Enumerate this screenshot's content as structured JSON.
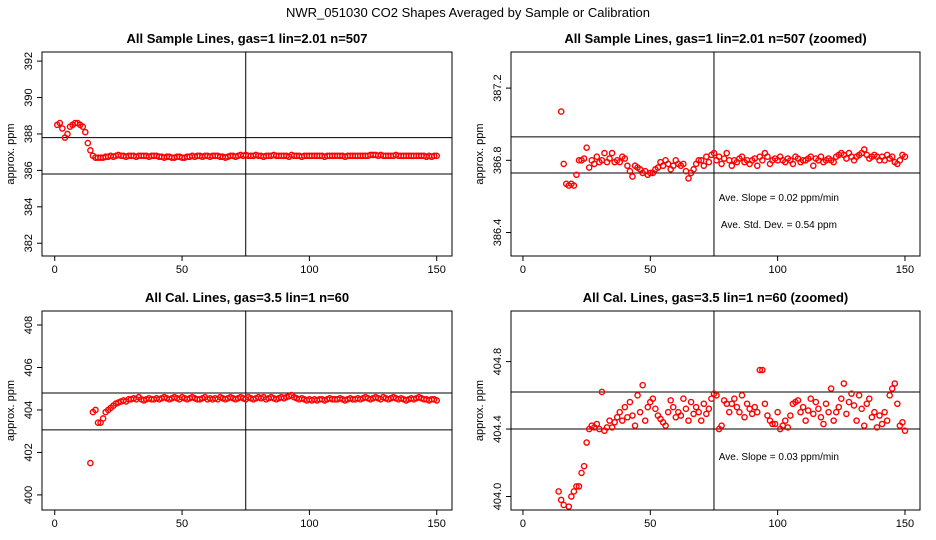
{
  "title": "NWR_051030  CO2 Shapes Averaged by Sample or Calibration",
  "chart_data": [
    {
      "type": "scatter",
      "title": "All Sample Lines, gas=1 lin=2.01 n=507",
      "ylabel": "approx. ppm",
      "color": "#ff0000",
      "xlim": [
        -5,
        156
      ],
      "ylim": [
        381.3,
        392.5
      ],
      "xticks": [
        0,
        50,
        100,
        150
      ],
      "yticks": [
        382,
        384,
        386,
        388,
        390,
        392
      ],
      "hlines": [
        387.8,
        385.8
      ],
      "vlines": [
        75
      ],
      "annotations": [],
      "x": [
        1,
        2,
        3,
        4,
        5,
        6,
        7,
        8,
        9,
        10,
        11,
        12,
        13,
        14,
        15,
        16,
        17,
        18,
        19,
        20,
        21,
        22,
        23,
        24,
        25,
        26,
        27,
        28,
        29,
        30,
        31,
        32,
        33,
        34,
        35,
        36,
        37,
        38,
        39,
        40,
        41,
        42,
        43,
        44,
        45,
        46,
        47,
        48,
        49,
        50,
        51,
        52,
        53,
        54,
        55,
        56,
        57,
        58,
        59,
        60,
        61,
        62,
        63,
        64,
        65,
        66,
        67,
        68,
        69,
        70,
        71,
        72,
        73,
        74,
        75,
        76,
        77,
        78,
        79,
        80,
        81,
        82,
        83,
        84,
        85,
        86,
        87,
        88,
        89,
        90,
        91,
        92,
        93,
        94,
        95,
        96,
        97,
        98,
        99,
        100,
        101,
        102,
        103,
        104,
        105,
        106,
        107,
        108,
        109,
        110,
        111,
        112,
        113,
        114,
        115,
        116,
        117,
        118,
        119,
        120,
        121,
        122,
        123,
        124,
        125,
        126,
        127,
        128,
        129,
        130,
        131,
        132,
        133,
        134,
        135,
        136,
        137,
        138,
        139,
        140,
        141,
        142,
        143,
        144,
        145,
        146,
        147,
        148,
        149,
        150
      ],
      "values": [
        388.5,
        388.6,
        388.3,
        387.8,
        388.0,
        388.4,
        388.5,
        388.6,
        388.6,
        388.5,
        388.4,
        388.1,
        387.5,
        387.1,
        386.8,
        386.7,
        386.7,
        386.7,
        386.7,
        386.75,
        386.75,
        386.8,
        386.75,
        386.8,
        386.85,
        386.8,
        386.8,
        386.75,
        386.8,
        386.8,
        386.8,
        386.75,
        386.8,
        386.8,
        386.8,
        386.8,
        386.75,
        386.8,
        386.8,
        386.8,
        386.75,
        386.75,
        386.7,
        386.75,
        386.75,
        386.7,
        386.7,
        386.75,
        386.75,
        386.7,
        386.7,
        386.75,
        386.75,
        386.8,
        386.75,
        386.8,
        386.8,
        386.75,
        386.8,
        386.8,
        386.75,
        386.8,
        386.8,
        386.8,
        386.75,
        386.75,
        386.7,
        386.75,
        386.8,
        386.8,
        386.75,
        386.8,
        386.85,
        386.8,
        386.85,
        386.8,
        386.8,
        386.8,
        386.85,
        386.8,
        386.8,
        386.75,
        386.8,
        386.8,
        386.8,
        386.85,
        386.8,
        386.8,
        386.8,
        386.8,
        386.8,
        386.75,
        386.85,
        386.8,
        386.8,
        386.8,
        386.75,
        386.8,
        386.8,
        386.8,
        386.8,
        386.8,
        386.8,
        386.8,
        386.8,
        386.75,
        386.8,
        386.8,
        386.8,
        386.8,
        386.8,
        386.8,
        386.8,
        386.75,
        386.8,
        386.8,
        386.8,
        386.8,
        386.8,
        386.8,
        386.8,
        386.8,
        386.8,
        386.85,
        386.85,
        386.85,
        386.8,
        386.85,
        386.8,
        386.8,
        386.8,
        386.8,
        386.8,
        386.85,
        386.8,
        386.8,
        386.8,
        386.8,
        386.8,
        386.8,
        386.8,
        386.8,
        386.8,
        386.8,
        386.8,
        386.75,
        386.8,
        386.75,
        386.8,
        386.8
      ]
    },
    {
      "type": "scatter",
      "title": "All Sample Lines, gas=1 lin=2.01 n=507 (zoomed)",
      "ylabel": "approx. ppm",
      "color": "#ff0000",
      "xlim": [
        -4.7,
        155.9
      ],
      "ylim": [
        386.27,
        387.4
      ],
      "xticks": [
        0,
        50,
        100,
        150
      ],
      "yticks": [
        386.4,
        386.8,
        387.2
      ],
      "hlines": [
        386.93,
        386.73
      ],
      "vlines": [
        75
      ],
      "annotations": [
        "Ave. Slope =  0.02  ppm/min",
        "Ave. Std. Dev. =  0.54  ppm"
      ],
      "x": [
        15,
        16,
        17,
        18,
        19,
        20,
        21,
        22,
        23,
        24,
        25,
        26,
        27,
        28,
        29,
        30,
        31,
        32,
        33,
        34,
        35,
        36,
        37,
        38,
        39,
        40,
        41,
        42,
        43,
        44,
        45,
        46,
        47,
        48,
        49,
        50,
        51,
        52,
        53,
        54,
        55,
        56,
        57,
        58,
        59,
        60,
        61,
        62,
        63,
        64,
        65,
        66,
        67,
        68,
        69,
        70,
        71,
        72,
        73,
        74,
        75,
        76,
        77,
        78,
        79,
        80,
        81,
        82,
        83,
        84,
        85,
        86,
        87,
        88,
        89,
        90,
        91,
        92,
        93,
        94,
        95,
        96,
        97,
        98,
        99,
        100,
        101,
        102,
        103,
        104,
        105,
        106,
        107,
        108,
        109,
        110,
        111,
        112,
        113,
        114,
        115,
        116,
        117,
        118,
        119,
        120,
        121,
        122,
        123,
        124,
        125,
        126,
        127,
        128,
        129,
        130,
        131,
        132,
        133,
        134,
        135,
        136,
        137,
        138,
        139,
        140,
        141,
        142,
        143,
        144,
        145,
        146,
        147,
        148,
        149,
        150
      ],
      "values": [
        387.07,
        386.78,
        386.67,
        386.66,
        386.67,
        386.66,
        386.72,
        386.8,
        386.8,
        386.81,
        386.87,
        386.76,
        386.8,
        386.78,
        386.82,
        386.79,
        386.8,
        386.84,
        386.79,
        386.81,
        386.84,
        386.79,
        386.8,
        386.79,
        386.82,
        386.81,
        386.77,
        386.74,
        386.71,
        386.77,
        386.76,
        386.75,
        386.73,
        386.74,
        386.72,
        386.73,
        386.73,
        386.75,
        386.76,
        386.79,
        386.77,
        386.8,
        386.78,
        386.75,
        386.77,
        386.8,
        386.78,
        386.77,
        386.78,
        386.74,
        386.7,
        386.73,
        386.75,
        386.78,
        386.8,
        386.8,
        386.77,
        386.82,
        386.79,
        386.83,
        386.84,
        386.8,
        386.82,
        386.78,
        386.81,
        386.84,
        386.8,
        386.77,
        386.8,
        386.79,
        386.81,
        386.82,
        386.79,
        386.8,
        386.78,
        386.8,
        386.81,
        386.77,
        386.82,
        386.8,
        386.84,
        386.82,
        386.78,
        386.8,
        386.81,
        386.8,
        386.82,
        386.8,
        386.79,
        386.81,
        386.8,
        386.78,
        386.82,
        386.81,
        386.79,
        386.8,
        386.8,
        386.81,
        386.82,
        386.77,
        386.81,
        386.8,
        386.82,
        386.79,
        386.8,
        386.81,
        386.8,
        386.79,
        386.82,
        386.83,
        386.84,
        386.83,
        386.81,
        386.84,
        386.82,
        386.8,
        386.82,
        386.83,
        386.84,
        386.86,
        386.83,
        386.81,
        386.82,
        386.83,
        386.82,
        386.8,
        386.82,
        386.8,
        386.83,
        386.81,
        386.82,
        386.79,
        386.78,
        386.8,
        386.83,
        386.82
      ]
    },
    {
      "type": "scatter",
      "title": "All Cal. Lines, gas=3.5 lin=1 n=60",
      "ylabel": "approx. ppm",
      "color": "#ff0000",
      "xlim": [
        -5,
        156
      ],
      "ylim": [
        399.29,
        408.66
      ],
      "xticks": [
        0,
        50,
        100,
        150
      ],
      "yticks": [
        400,
        402,
        404,
        406,
        408
      ],
      "hlines": [
        404.8,
        403.06
      ],
      "vlines": [
        75
      ],
      "annotations": [],
      "x": [
        14,
        15,
        16,
        17,
        18,
        19,
        20,
        21,
        22,
        23,
        24,
        25,
        26,
        27,
        28,
        29,
        30,
        31,
        32,
        33,
        34,
        35,
        36,
        37,
        38,
        39,
        40,
        41,
        42,
        43,
        44,
        45,
        46,
        47,
        48,
        49,
        50,
        51,
        52,
        53,
        54,
        55,
        56,
        57,
        58,
        59,
        60,
        61,
        62,
        63,
        64,
        65,
        66,
        67,
        68,
        69,
        70,
        71,
        72,
        73,
        74,
        75,
        76,
        77,
        78,
        79,
        80,
        81,
        82,
        83,
        84,
        85,
        86,
        87,
        88,
        89,
        90,
        91,
        92,
        93,
        94,
        95,
        96,
        97,
        98,
        99,
        100,
        101,
        102,
        103,
        104,
        105,
        106,
        107,
        108,
        109,
        110,
        111,
        112,
        113,
        114,
        115,
        116,
        117,
        118,
        119,
        120,
        121,
        122,
        123,
        124,
        125,
        126,
        127,
        128,
        129,
        130,
        131,
        132,
        133,
        134,
        135,
        136,
        137,
        138,
        139,
        140,
        141,
        142,
        143,
        144,
        145,
        146,
        147,
        148,
        149,
        150
      ],
      "values": [
        401.5,
        403.9,
        404.0,
        403.4,
        403.4,
        403.6,
        403.9,
        404.0,
        404.1,
        404.2,
        404.3,
        404.35,
        404.4,
        404.45,
        404.4,
        404.5,
        404.5,
        404.55,
        404.5,
        404.6,
        404.5,
        404.45,
        404.5,
        404.55,
        404.5,
        404.5,
        404.55,
        404.5,
        404.55,
        404.6,
        404.55,
        404.5,
        404.55,
        404.6,
        404.55,
        404.5,
        404.6,
        404.55,
        404.5,
        404.55,
        404.6,
        404.55,
        404.5,
        404.5,
        404.55,
        404.6,
        404.5,
        404.55,
        404.5,
        404.55,
        404.5,
        404.6,
        404.55,
        404.5,
        404.55,
        404.6,
        404.55,
        404.5,
        404.55,
        404.6,
        404.55,
        404.5,
        404.6,
        404.55,
        404.5,
        404.55,
        404.6,
        404.55,
        404.6,
        404.5,
        404.55,
        404.6,
        404.55,
        404.5,
        404.55,
        404.6,
        404.55,
        404.6,
        404.65,
        404.7,
        404.6,
        404.55,
        404.5,
        404.55,
        404.5,
        404.45,
        404.5,
        404.45,
        404.5,
        404.45,
        404.5,
        404.5,
        404.45,
        404.5,
        404.55,
        404.5,
        404.5,
        404.5,
        404.55,
        404.5,
        404.45,
        404.5,
        404.55,
        404.5,
        404.5,
        404.55,
        404.5,
        404.55,
        404.6,
        404.55,
        404.5,
        404.55,
        404.6,
        404.55,
        404.5,
        404.6,
        404.55,
        404.5,
        404.55,
        404.6,
        404.55,
        404.5,
        404.55,
        404.5,
        404.45,
        404.5,
        404.55,
        404.5,
        404.55,
        404.6,
        404.55,
        404.5,
        404.5,
        404.45,
        404.5,
        404.5,
        404.45
      ]
    },
    {
      "type": "scatter",
      "title": "All Cal. Lines, gas=3.5 lin=1 n=60 (zoomed)",
      "ylabel": "approx. ppm",
      "color": "#ff0000",
      "xlim": [
        -4.7,
        155.9
      ],
      "ylim": [
        403.92,
        405.1
      ],
      "xticks": [
        0,
        50,
        100,
        150
      ],
      "yticks": [
        {
          "value": 404,
          "label": "404.0"
        },
        404.4,
        404.8
      ],
      "hlines": [
        404.62,
        404.4
      ],
      "vlines": [
        75
      ],
      "annotations": [
        "Ave. Slope =  0.03  ppm/min"
      ],
      "x": [
        14,
        15,
        16,
        17,
        18,
        19,
        20,
        21,
        22,
        23,
        24,
        25,
        26,
        27,
        28,
        29,
        30,
        31,
        32,
        33,
        34,
        35,
        36,
        37,
        38,
        39,
        40,
        41,
        42,
        43,
        44,
        45,
        46,
        47,
        48,
        49,
        50,
        51,
        52,
        53,
        54,
        55,
        56,
        57,
        58,
        59,
        60,
        61,
        62,
        63,
        64,
        65,
        66,
        67,
        68,
        69,
        70,
        71,
        72,
        73,
        74,
        75,
        76,
        77,
        78,
        79,
        80,
        81,
        82,
        83,
        84,
        85,
        86,
        87,
        88,
        89,
        90,
        91,
        92,
        93,
        94,
        95,
        96,
        97,
        98,
        99,
        100,
        101,
        102,
        103,
        104,
        105,
        106,
        107,
        108,
        109,
        110,
        111,
        112,
        113,
        114,
        115,
        116,
        117,
        118,
        119,
        120,
        121,
        122,
        123,
        124,
        125,
        126,
        127,
        128,
        129,
        130,
        131,
        132,
        133,
        134,
        135,
        136,
        137,
        138,
        139,
        140,
        141,
        142,
        143,
        144,
        145,
        146,
        147,
        148,
        149,
        150
      ],
      "values": [
        404.03,
        403.98,
        403.95,
        403.9,
        403.94,
        404.0,
        404.03,
        404.06,
        404.06,
        404.14,
        404.18,
        404.32,
        404.4,
        404.42,
        404.41,
        404.43,
        404.4,
        404.62,
        404.39,
        404.41,
        404.45,
        404.41,
        404.44,
        404.47,
        404.5,
        404.45,
        404.53,
        404.47,
        404.56,
        404.48,
        404.42,
        404.6,
        404.5,
        404.66,
        404.45,
        404.53,
        404.56,
        404.58,
        404.52,
        404.48,
        404.46,
        404.44,
        404.42,
        404.5,
        404.57,
        404.53,
        404.47,
        404.5,
        404.48,
        404.58,
        404.52,
        404.45,
        404.56,
        404.49,
        404.53,
        404.5,
        404.45,
        404.55,
        404.49,
        404.52,
        404.58,
        404.61,
        404.6,
        404.4,
        404.42,
        404.57,
        404.55,
        404.5,
        404.55,
        404.58,
        404.53,
        404.5,
        404.6,
        404.47,
        404.55,
        404.52,
        404.49,
        404.53,
        404.5,
        404.75,
        404.75,
        404.55,
        404.48,
        404.45,
        404.43,
        404.43,
        404.5,
        404.4,
        404.42,
        404.45,
        404.41,
        404.48,
        404.55,
        404.56,
        404.57,
        404.5,
        404.53,
        404.45,
        404.51,
        404.58,
        404.49,
        404.56,
        404.52,
        404.47,
        404.43,
        404.55,
        404.5,
        404.64,
        404.45,
        404.5,
        404.53,
        404.58,
        404.67,
        404.49,
        404.56,
        404.61,
        404.54,
        404.45,
        404.6,
        404.52,
        404.42,
        404.55,
        404.58,
        404.47,
        404.5,
        404.41,
        404.48,
        404.43,
        404.5,
        404.45,
        404.6,
        404.64,
        404.67,
        404.55,
        404.42,
        404.44,
        404.39
      ]
    }
  ]
}
